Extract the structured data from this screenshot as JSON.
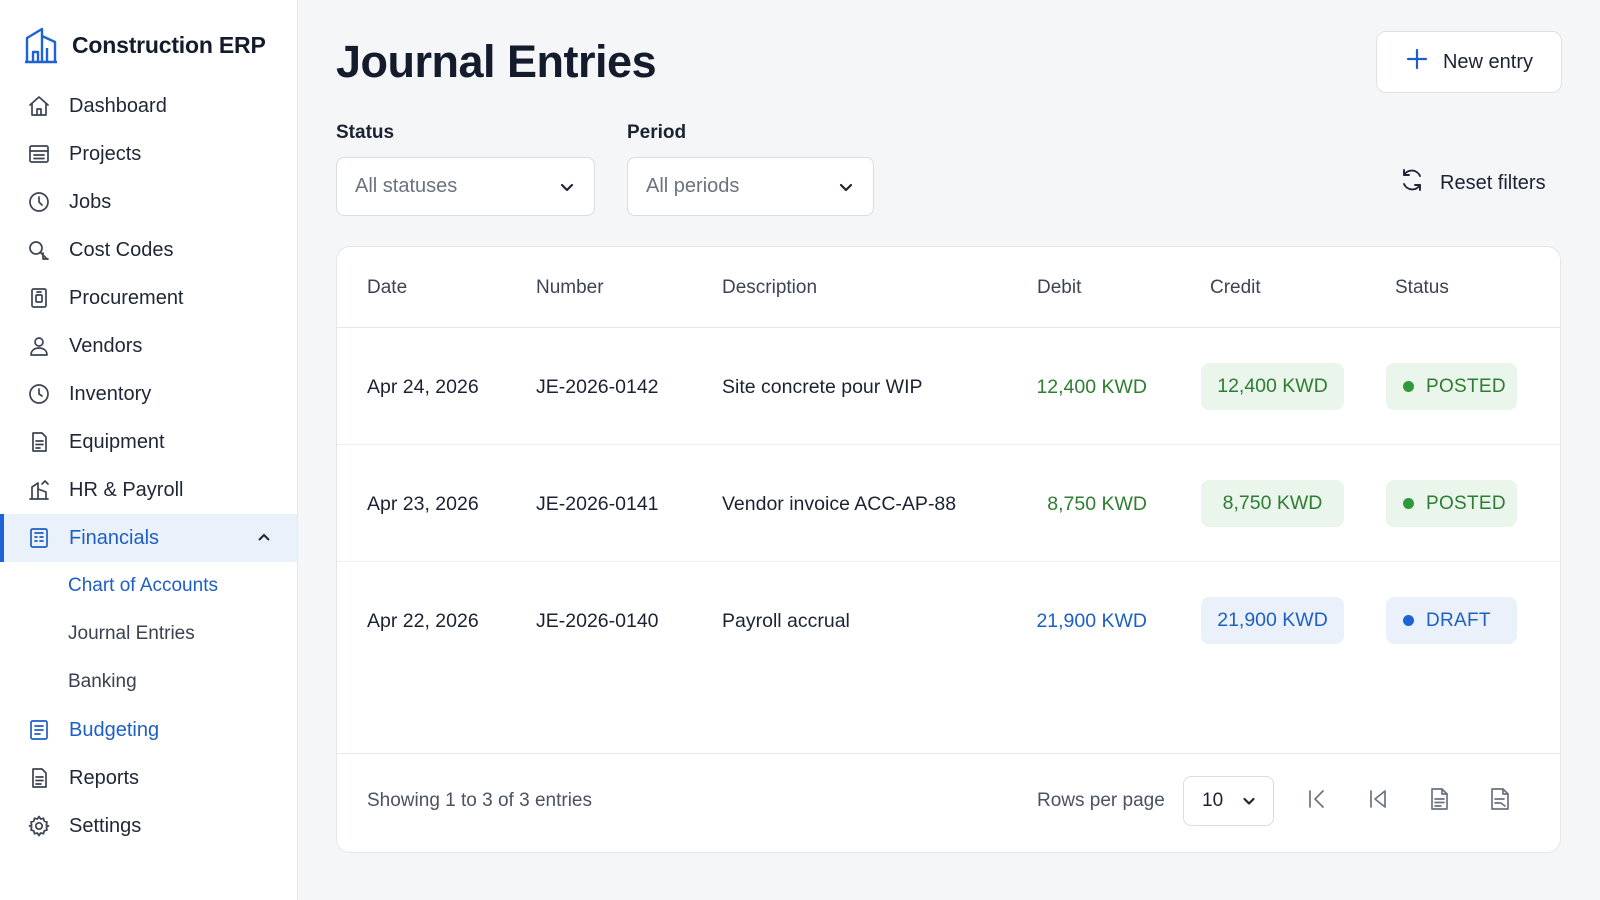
{
  "app": {
    "name": "Construction ERP"
  },
  "sidebar": {
    "items": [
      {
        "label": "Dashboard",
        "icon": "home-icon"
      },
      {
        "label": "Projects",
        "icon": "projects-icon"
      },
      {
        "label": "Jobs",
        "icon": "clock-icon"
      },
      {
        "label": "Cost Codes",
        "icon": "cost-codes-icon"
      },
      {
        "label": "Procurement",
        "icon": "procurement-icon"
      },
      {
        "label": "Vendors",
        "icon": "user-icon"
      },
      {
        "label": "Inventory",
        "icon": "clock-icon"
      },
      {
        "label": "Equipment",
        "icon": "equipment-icon"
      },
      {
        "label": "HR & Payroll",
        "icon": "payroll-icon"
      },
      {
        "label": "Financials",
        "icon": "financials-icon",
        "expanded": true
      },
      {
        "label": "Budgeting",
        "icon": "budgeting-icon"
      },
      {
        "label": "Reports",
        "icon": "reports-icon"
      },
      {
        "label": "Settings",
        "icon": "gear-icon"
      }
    ],
    "financials_sub": [
      {
        "label": "Chart of Accounts"
      },
      {
        "label": "Journal Entries"
      },
      {
        "label": "Banking"
      }
    ]
  },
  "header": {
    "title": "Journal Entries",
    "new_entry_label": "New entry"
  },
  "filters": {
    "status_label": "Status",
    "status_value": "All statuses",
    "period_label": "Period",
    "period_value": "All periods",
    "reset_label": "Reset filters"
  },
  "table": {
    "columns": [
      "Date",
      "Number",
      "Description",
      "Debit",
      "Credit",
      "Status"
    ],
    "rows": [
      {
        "date": "Apr 24, 2026",
        "number": "JE-2026-0142",
        "description": "Site concrete pour WIP",
        "debit": "12,400 KWD",
        "credit": "12,400 KWD",
        "status": "POSTED"
      },
      {
        "date": "Apr 23, 2026",
        "number": "JE-2026-0141",
        "description": "Vendor invoice ACC-AP-88",
        "debit": "8,750 KWD",
        "credit": "8,750 KWD",
        "status": "POSTED"
      },
      {
        "date": "Apr 22, 2026",
        "number": "JE-2026-0140",
        "description": "Payroll accrual",
        "debit": "21,900 KWD",
        "credit": "21,900 KWD",
        "status": "DRAFT"
      }
    ]
  },
  "footer": {
    "showing": "Showing 1 to 3 of 3 entries",
    "rows_per_page_label": "Rows per page",
    "rows_per_page_value": "10"
  },
  "colors": {
    "accent": "#1e5fc4",
    "posted": "#2e7d32",
    "draft": "#1e5fc4"
  }
}
